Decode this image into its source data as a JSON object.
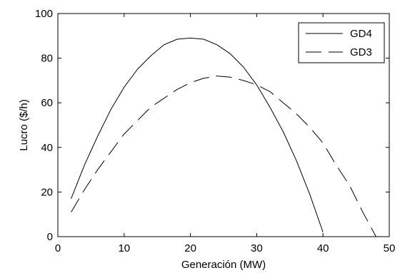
{
  "chart_data": {
    "type": "line",
    "title": "",
    "xlabel": "Generación (MW)",
    "ylabel": "Lucro ($/h)",
    "xlim": [
      0,
      50
    ],
    "ylim": [
      0,
      100
    ],
    "xticks": [
      "0",
      "10",
      "20",
      "30",
      "40",
      "50"
    ],
    "yticks": [
      "0",
      "20",
      "40",
      "60",
      "80",
      "100"
    ],
    "grid": false,
    "legend_position": "top-right",
    "series": [
      {
        "name": "GD4",
        "style": "solid",
        "color": "#000000",
        "x": [
          2,
          4,
          6,
          8,
          10,
          12,
          14,
          16,
          18,
          20,
          22,
          24,
          26,
          28,
          30,
          32,
          34,
          36,
          38,
          40
        ],
        "y": [
          17,
          32,
          45,
          57,
          67,
          75,
          81,
          86,
          88.5,
          89,
          88.5,
          86,
          82,
          76,
          68,
          58,
          47,
          34,
          19,
          2
        ]
      },
      {
        "name": "GD3",
        "style": "dashed",
        "color": "#000000",
        "x": [
          2,
          4,
          6,
          8,
          10,
          12,
          14,
          16,
          18,
          20,
          22,
          24,
          26,
          28,
          30,
          32,
          34,
          36,
          38,
          40,
          42,
          44,
          46,
          48
        ],
        "y": [
          11,
          21,
          30,
          38,
          46,
          52,
          58,
          62,
          66,
          69,
          71,
          72,
          71.5,
          70,
          68,
          65,
          60,
          55,
          49,
          42,
          32,
          23,
          11,
          0
        ]
      }
    ]
  }
}
